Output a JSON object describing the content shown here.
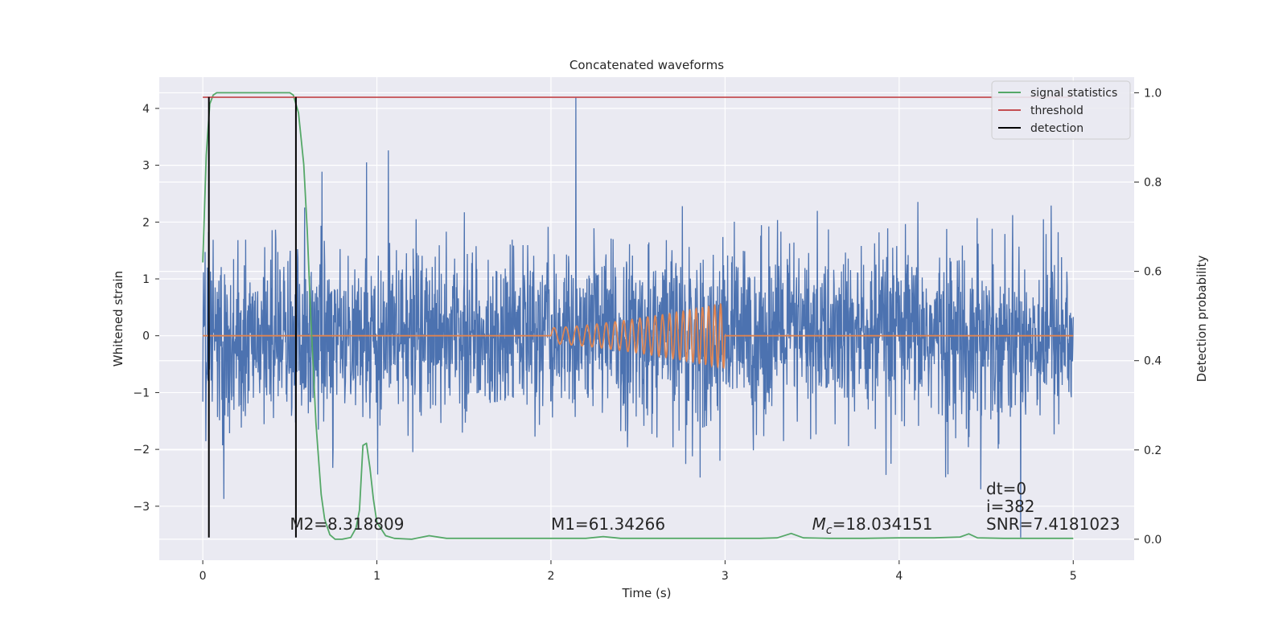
{
  "chart_data": {
    "type": "line",
    "title": "Concatenated waveforms",
    "xlabel": "Time (s)",
    "ylabel": "Whitened strain",
    "y2label": "Detection probability",
    "xlim": [
      -0.25,
      5.35
    ],
    "ylim": [
      -3.95,
      4.55
    ],
    "y2lim": [
      -0.047,
      1.035
    ],
    "x_ticks": [
      0,
      1,
      2,
      3,
      4,
      5
    ],
    "y_ticks": [
      -3,
      -2,
      -1,
      0,
      1,
      2,
      3,
      4
    ],
    "y2_ticks": [
      0.0,
      0.2,
      0.4,
      0.6,
      0.8,
      1.0
    ],
    "grid": true,
    "legend_position": "top-right",
    "colors": {
      "background": "#eaeaf2",
      "grid": "#ffffff",
      "strain": "#4c72b0",
      "template": "#dd8452",
      "statistic": "#55a868",
      "threshold": "#c44e52",
      "detection": "#000000"
    },
    "series": [
      {
        "name": "",
        "role": "strain",
        "x_range": [
          0,
          5
        ],
        "amplitude_std": 0.75,
        "approx_min": -3.55,
        "approx_max": 4.2
      },
      {
        "name": "",
        "role": "template",
        "x_range": [
          0,
          5
        ],
        "chirp_start": 2.0,
        "chirp_end": 3.0,
        "chirp_amp_start": 0.14,
        "chirp_amp_end": 0.57
      },
      {
        "name": "signal statistics",
        "axis": "right",
        "x": [
          0.0,
          0.02,
          0.04,
          0.06,
          0.08,
          0.1,
          0.2,
          0.3,
          0.4,
          0.5,
          0.52,
          0.55,
          0.58,
          0.6,
          0.62,
          0.65,
          0.68,
          0.7,
          0.73,
          0.76,
          0.8,
          0.85,
          0.88,
          0.9,
          0.92,
          0.94,
          0.96,
          0.98,
          1.0,
          1.05,
          1.1,
          1.2,
          1.3,
          1.4,
          1.6,
          1.8,
          2.0,
          2.2,
          2.3,
          2.4,
          2.6,
          2.8,
          3.0,
          3.2,
          3.3,
          3.38,
          3.45,
          3.6,
          3.8,
          4.0,
          4.2,
          4.35,
          4.4,
          4.45,
          4.6,
          4.8,
          5.0
        ],
        "y": [
          0.62,
          0.86,
          0.975,
          0.995,
          1.0,
          1.0,
          1.0,
          1.0,
          1.0,
          1.0,
          0.995,
          0.955,
          0.84,
          0.69,
          0.5,
          0.26,
          0.1,
          0.045,
          0.01,
          0.0,
          0.0,
          0.004,
          0.025,
          0.065,
          0.21,
          0.215,
          0.16,
          0.09,
          0.038,
          0.008,
          0.002,
          0.0,
          0.008,
          0.002,
          0.002,
          0.002,
          0.002,
          0.002,
          0.006,
          0.002,
          0.002,
          0.002,
          0.002,
          0.002,
          0.003,
          0.013,
          0.003,
          0.002,
          0.002,
          0.003,
          0.003,
          0.005,
          0.012,
          0.003,
          0.002,
          0.002,
          0.002
        ]
      },
      {
        "name": "threshold",
        "axis": "right",
        "x": [
          0,
          5
        ],
        "y": [
          0.99,
          0.99
        ]
      },
      {
        "name": "detection",
        "x": [
          0.035,
          0.535
        ],
        "y_range": [
          -3.55,
          4.2
        ]
      }
    ],
    "annotations": [
      {
        "text": "M2=8.318809",
        "x": 0.5,
        "y": -3.41
      },
      {
        "text": "M1=61.34266",
        "x": 2.0,
        "y": -3.41
      },
      {
        "text_prefix": "M",
        "text_sub": "c",
        "text_suffix": "=18.034151",
        "x": 3.5,
        "y": -3.41
      },
      {
        "text": "dt=0",
        "x": 4.5,
        "y": -2.79
      },
      {
        "text": "i=382",
        "x": 4.5,
        "y": -3.1
      },
      {
        "text": "SNR=7.4181023",
        "x": 4.5,
        "y": -3.41
      }
    ]
  }
}
